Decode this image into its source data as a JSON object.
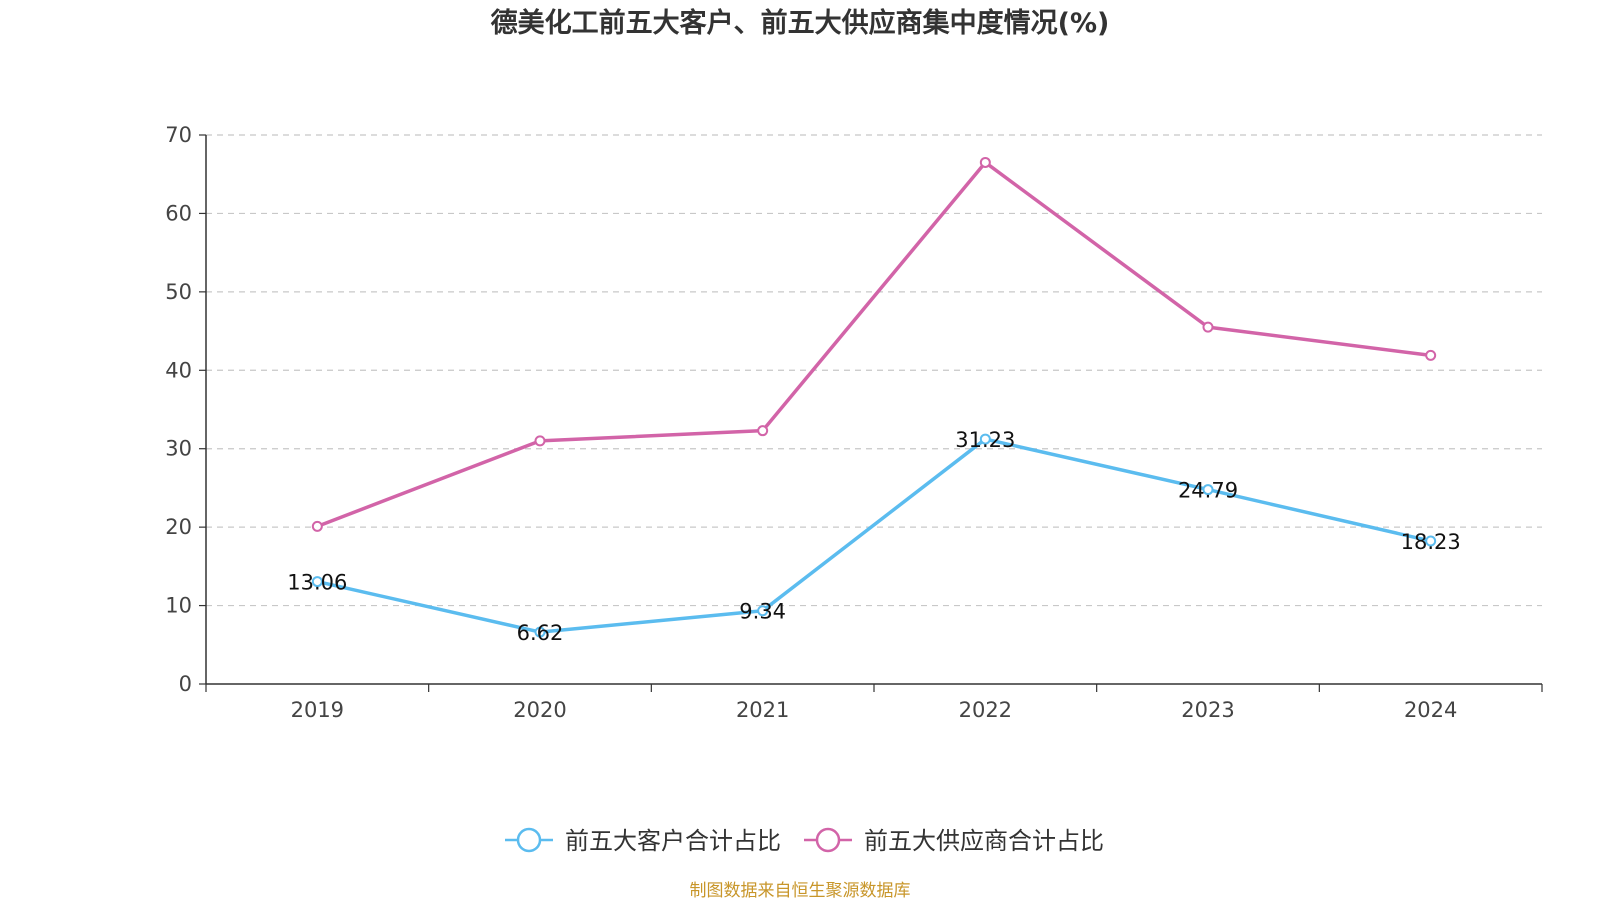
{
  "chart_data": {
    "type": "line",
    "title": "德美化工前五大客户、前五大供应商集中度情况(%)",
    "categories": [
      "2019",
      "2020",
      "2021",
      "2022",
      "2023",
      "2024"
    ],
    "ylim": [
      0,
      70
    ],
    "yticks": [
      0,
      10,
      20,
      30,
      40,
      50,
      60,
      70
    ],
    "ytick_labels": [
      "0",
      "10",
      "20",
      "30",
      "40",
      "50",
      "60",
      "70"
    ],
    "grid": true,
    "legend_position": "bottom-center",
    "series": [
      {
        "name": "前五大客户合计占比",
        "color": "#5bbcef",
        "values": [
          13.06,
          6.62,
          9.34,
          31.23,
          24.79,
          18.23
        ],
        "labels": [
          "13.06",
          "6.62",
          "9.34",
          "31.23",
          "24.79",
          "18.23"
        ]
      },
      {
        "name": "前五大供应商合计占比",
        "color": "#d264a8",
        "values": [
          20.1,
          31.0,
          32.3,
          66.5,
          45.5,
          41.9
        ]
      }
    ]
  },
  "source": {
    "text": "制图数据来自恒生聚源数据库",
    "color": "#c8962a"
  }
}
